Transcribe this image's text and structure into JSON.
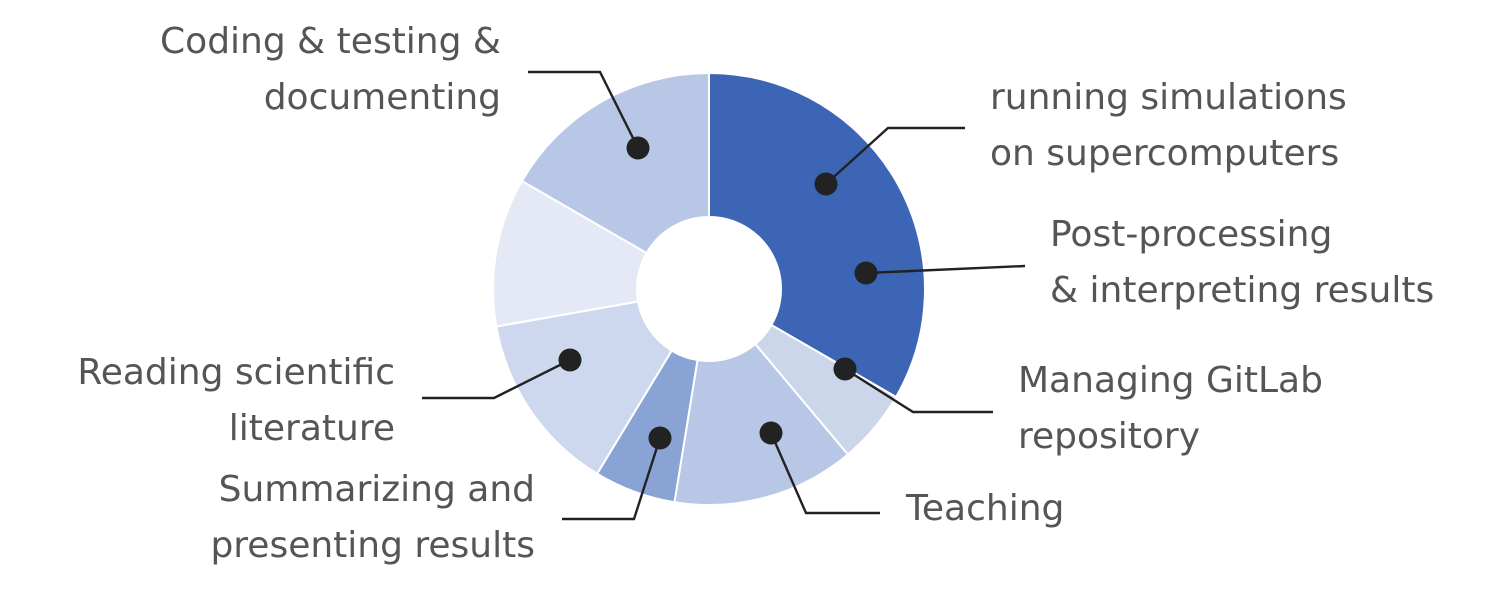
{
  "chart_data": {
    "type": "pie",
    "variant": "donut",
    "title": "",
    "start_angle_deg": 0,
    "values_unit": "share of total angle (fraction)",
    "slices": [
      {
        "label": [
          "Coding & testing &",
          "documenting"
        ],
        "value": 0.3,
        "color": "#3c65b5"
      },
      {
        "label": [
          "running simulations",
          "on supercomputers"
        ],
        "value": 0.05,
        "color": "#cbd6ea"
      },
      {
        "label": [
          "Post-processing",
          "& interpreting results"
        ],
        "value": 0.123,
        "color": "#b7c7e5"
      },
      {
        "label": [
          "Managing GitLab",
          "repository"
        ],
        "value": 0.055,
        "color": "#89a3d5"
      },
      {
        "label": [
          "Teaching"
        ],
        "value": 0.122,
        "color": "#cdd8ee"
      },
      {
        "label": [
          "Summarizing and",
          "presenting results"
        ],
        "value": 0.1,
        "color": "#e4e9f5"
      },
      {
        "label": [
          "Reading scientific",
          "literature"
        ],
        "value": 0.15,
        "color": "#b7c7e5"
      }
    ]
  }
}
